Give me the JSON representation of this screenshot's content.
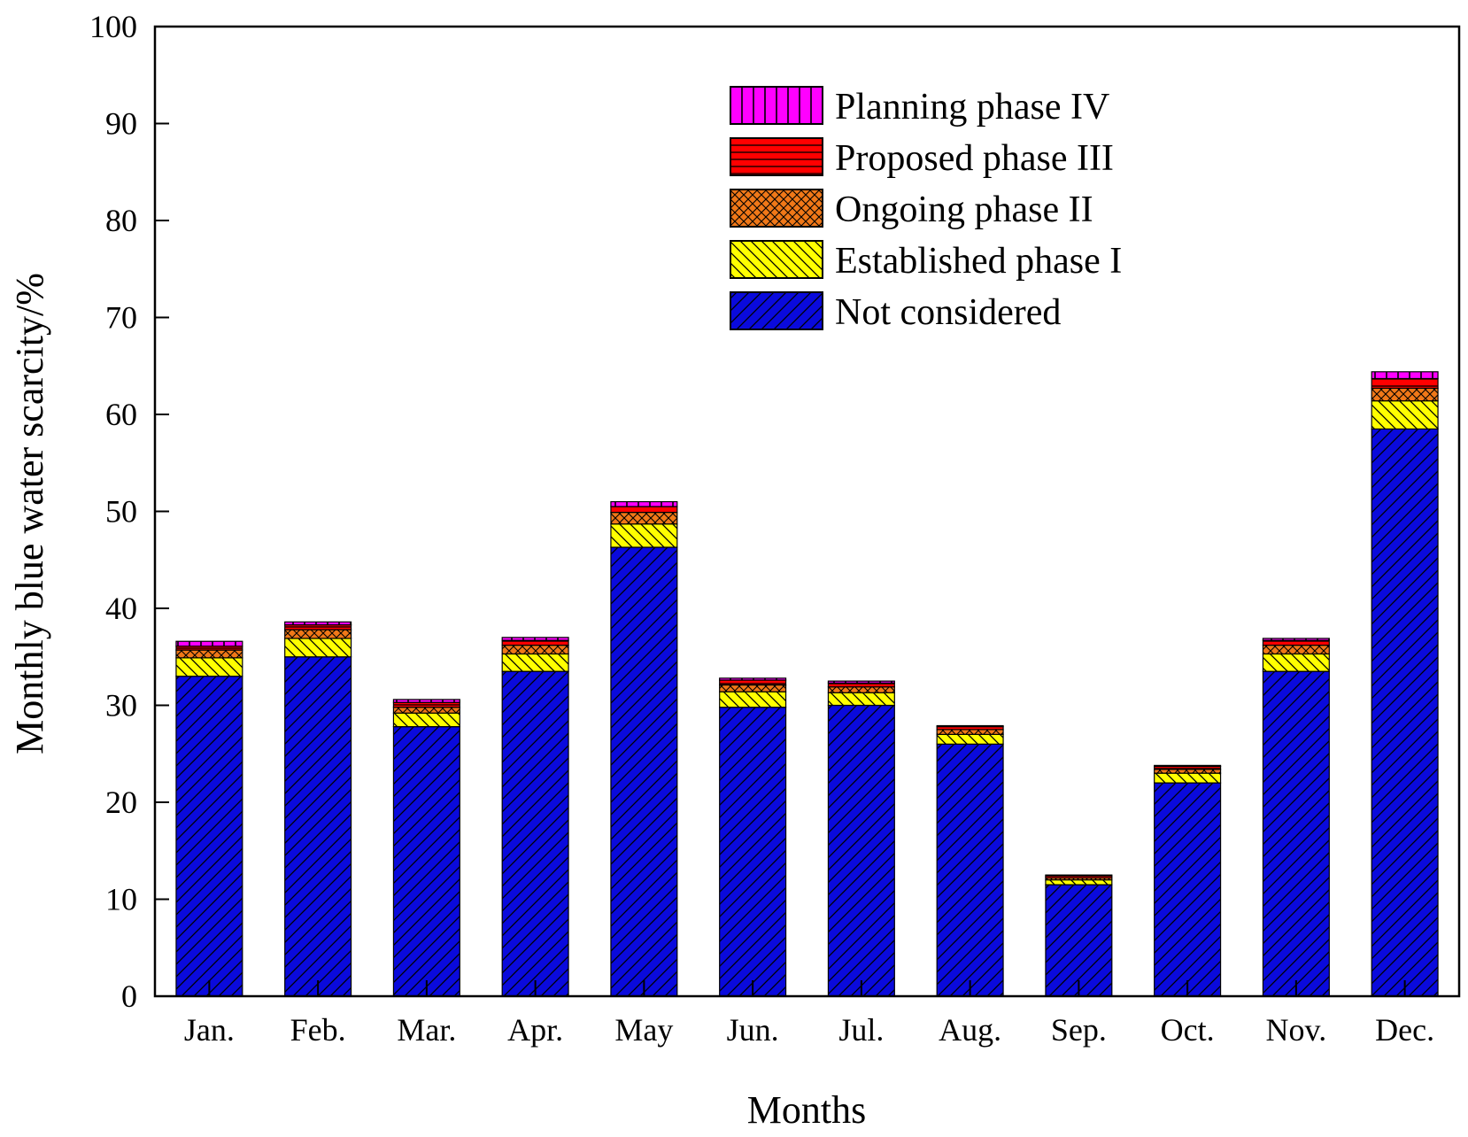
{
  "chart_data": {
    "type": "bar",
    "stacked": true,
    "xlabel": "Months",
    "ylabel": "Monthly blue water scarcity/%",
    "ylim": [
      0,
      100
    ],
    "yticks": [
      0,
      10,
      20,
      30,
      40,
      50,
      60,
      70,
      80,
      90,
      100
    ],
    "categories": [
      "Jan.",
      "Feb.",
      "Mar.",
      "Apr.",
      "May",
      "Jun.",
      "Jul.",
      "Aug.",
      "Sep.",
      "Oct.",
      "Nov.",
      "Dec."
    ],
    "legend_position": "top-right",
    "series": [
      {
        "name": "Not considered",
        "color": "#0a0adc",
        "pattern": "diag-forward",
        "values": [
          33.0,
          35.0,
          27.8,
          33.5,
          46.3,
          29.8,
          30.0,
          26.0,
          11.5,
          22.0,
          33.5,
          58.5
        ]
      },
      {
        "name": "Established phase I",
        "color": "#ffff00",
        "pattern": "diag-back",
        "values": [
          1.9,
          1.9,
          1.4,
          1.8,
          2.4,
          1.6,
          1.3,
          1.0,
          0.5,
          1.0,
          1.8,
          2.9
        ]
      },
      {
        "name": "Ongoing phase II",
        "color": "#f07818",
        "pattern": "crosshatch",
        "values": [
          0.8,
          0.9,
          0.6,
          0.9,
          1.2,
          0.7,
          0.6,
          0.5,
          0.2,
          0.4,
          0.9,
          1.3
        ]
      },
      {
        "name": "Proposed phase III",
        "color": "#ff0000",
        "pattern": "horizontal",
        "values": [
          0.4,
          0.5,
          0.5,
          0.5,
          0.6,
          0.5,
          0.4,
          0.3,
          0.2,
          0.3,
          0.5,
          1.0
        ]
      },
      {
        "name": "Planning phase IV",
        "color": "#ff00ff",
        "pattern": "vertical",
        "values": [
          0.5,
          0.3,
          0.3,
          0.3,
          0.5,
          0.2,
          0.2,
          0.1,
          0.1,
          0.1,
          0.2,
          0.7
        ]
      }
    ]
  }
}
